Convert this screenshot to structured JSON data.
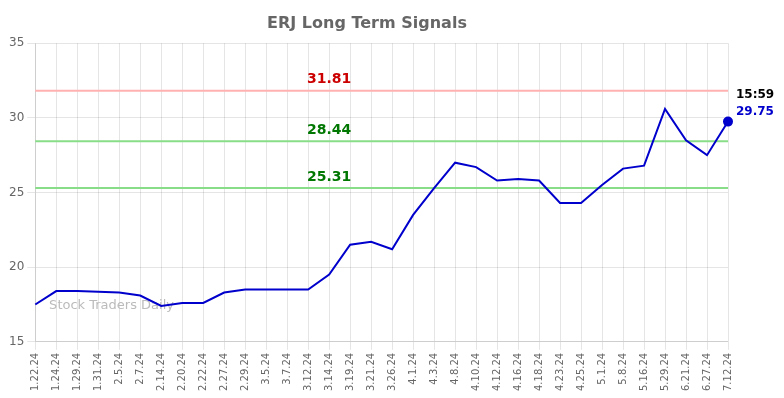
{
  "chart_data": {
    "type": "line",
    "title": "ERJ Long Term Signals",
    "categories": [
      "1.22.24",
      "1.24.24",
      "1.29.24",
      "1.31.24",
      "2.5.24",
      "2.7.24",
      "2.14.24",
      "2.20.24",
      "2.22.24",
      "2.27.24",
      "2.29.24",
      "3.5.24",
      "3.7.24",
      "3.12.24",
      "3.14.24",
      "3.19.24",
      "3.21.24",
      "3.26.24",
      "4.1.24",
      "4.3.24",
      "4.8.24",
      "4.10.24",
      "4.12.24",
      "4.16.24",
      "4.18.24",
      "4.23.24",
      "4.25.24",
      "5.1.24",
      "5.8.24",
      "5.16.24",
      "5.29.24",
      "6.21.24",
      "6.27.24",
      "7.12.24"
    ],
    "values": [
      17.5,
      18.4,
      18.4,
      18.35,
      18.3,
      18.1,
      17.4,
      17.6,
      17.6,
      18.3,
      18.5,
      18.5,
      18.5,
      18.5,
      19.5,
      21.5,
      21.7,
      21.2,
      23.5,
      25.3,
      27.0,
      26.7,
      25.8,
      25.9,
      25.8,
      24.3,
      24.3,
      25.5,
      26.6,
      26.8,
      30.6,
      28.5,
      27.5,
      29.75
    ],
    "color": "#0000cc",
    "ylim": [
      15,
      35
    ],
    "yticks": [
      15,
      20,
      25,
      30,
      35
    ],
    "grid": true,
    "hlines": [
      {
        "value": 31.81,
        "color": "#ffb0b0",
        "label": "31.81",
        "label_color": "#cc0000"
      },
      {
        "value": 28.44,
        "color": "#88dd88",
        "label": "28.44",
        "label_color": "#007700"
      },
      {
        "value": 25.31,
        "color": "#88dd88",
        "label": "25.31",
        "label_color": "#007700"
      }
    ],
    "annotations": [
      {
        "text": "15:59",
        "color": "#000000"
      },
      {
        "text": "29.75",
        "color": "#0000cc"
      }
    ],
    "watermark": {
      "text": "Stock Traders Daily",
      "color": "#bbbbbb"
    }
  }
}
